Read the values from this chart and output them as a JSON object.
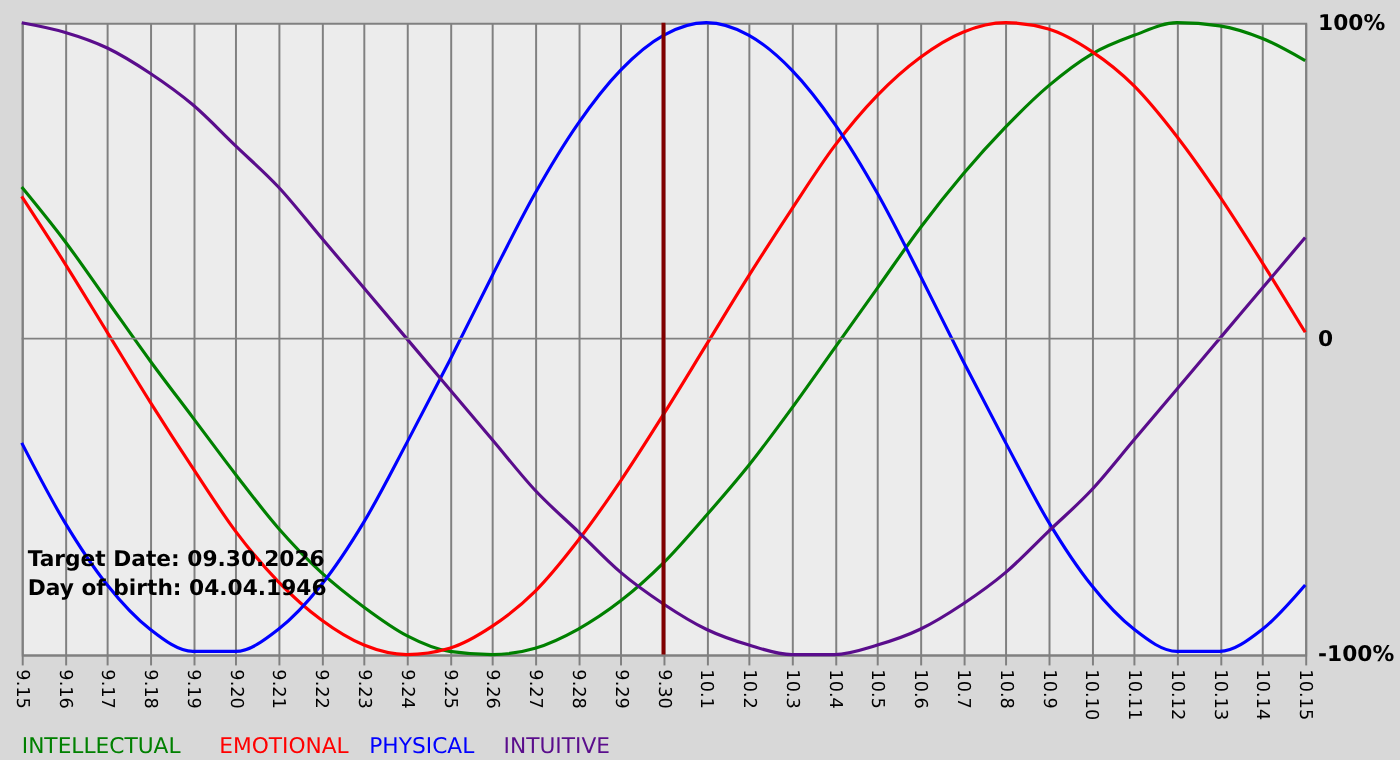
{
  "chart_data": {
    "type": "line",
    "categories": [
      "9.15",
      "9.16",
      "9.17",
      "9.18",
      "9.19",
      "9.20",
      "9.21",
      "9.22",
      "9.23",
      "9.24",
      "9.25",
      "9.26",
      "9.27",
      "9.28",
      "9.29",
      "9.30",
      "10.1",
      "10.2",
      "10.3",
      "10.4",
      "10.5",
      "10.6",
      "10.7",
      "10.8",
      "10.9",
      "10.10",
      "10.11",
      "10.12",
      "10.13",
      "10.14",
      "10.15"
    ],
    "series": [
      {
        "name": "INTELLECTUAL",
        "color": "#008000",
        "values": [
          48,
          31,
          12,
          -7,
          -25,
          -43,
          -60,
          -74,
          -85,
          -94,
          -99,
          -100,
          -98,
          -92,
          -83,
          -71,
          -56,
          -40,
          -22,
          -3,
          16,
          35,
          52,
          67,
          80,
          90,
          96,
          100,
          99,
          95,
          88
        ]
      },
      {
        "name": "EMOTIONAL",
        "color": "#ff0000",
        "values": [
          45,
          24,
          2,
          -20,
          -41,
          -61,
          -77,
          -89,
          -97,
          -100,
          -98,
          -91,
          -80,
          -64,
          -45,
          -24,
          -2,
          20,
          41,
          61,
          77,
          89,
          97,
          100,
          98,
          91,
          80,
          64,
          45,
          24,
          2
        ]
      },
      {
        "name": "PHYSICAL",
        "color": "#0000ff",
        "values": [
          -33,
          -58,
          -78,
          -92,
          -99,
          -99,
          -92,
          -78,
          -58,
          -33,
          -7,
          20,
          46,
          68,
          85,
          96,
          100,
          96,
          85,
          68,
          46,
          20,
          -7,
          -33,
          -58,
          -78,
          -92,
          -99,
          -99,
          -92,
          -78
        ]
      },
      {
        "name": "INTUITIVE",
        "color": "#5a0d8c",
        "values": [
          100,
          97,
          92,
          84,
          74,
          61,
          48,
          32,
          16,
          0,
          -16,
          -32,
          -48,
          -61,
          -74,
          -84,
          -92,
          -97,
          -100,
          -100,
          -97,
          -92,
          -84,
          -74,
          -61,
          -48,
          -32,
          -16,
          0,
          16,
          32
        ]
      }
    ],
    "ylim": [
      -100,
      100
    ],
    "yticks": [
      {
        "value": -100,
        "label": "-100%"
      },
      0,
      {
        "value": 100,
        "label": "100%"
      }
    ],
    "grid": "x",
    "ref_lines": [
      {
        "axis": "y",
        "value": 0,
        "color": "#808080"
      },
      {
        "axis": "x",
        "value": "9.30",
        "color": "#800000"
      }
    ],
    "annotations": [
      "Target Date: 09.30.2026",
      "Day of birth: 04.04.1946"
    ],
    "legend": "bottom",
    "marker": "none",
    "line_style": "solid"
  }
}
